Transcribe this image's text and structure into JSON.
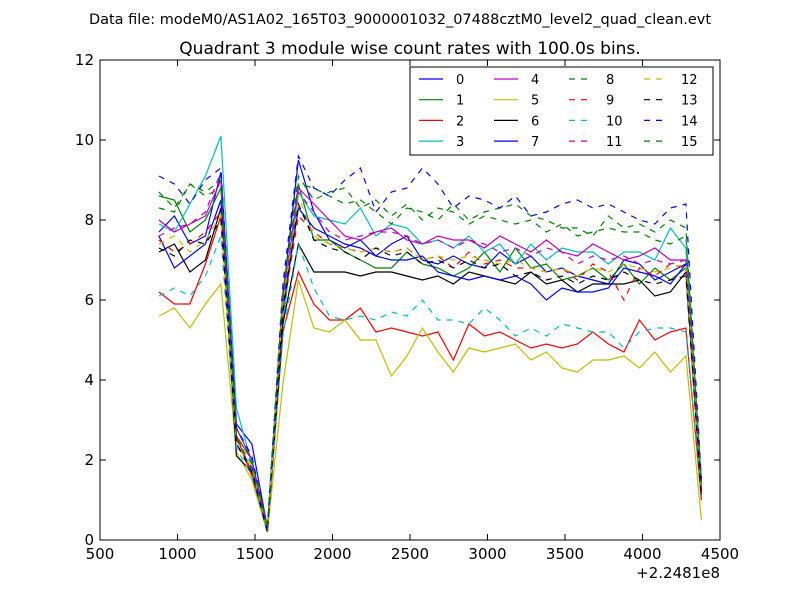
{
  "figure": {
    "suptitle": "Data file: modeM0/AS1A02_165T03_9000001032_07488cztM0_level2_quad_clean.evt"
  },
  "chart_data": {
    "type": "line",
    "title": "Quadrant 3 module wise count rates with 100.0s bins.",
    "xlabel": "",
    "ylabel": "",
    "x_offset_label": "+2.2481e8",
    "xlim": [
      500,
      4500
    ],
    "ylim": [
      0,
      12
    ],
    "xticks": [
      500,
      1000,
      1500,
      2000,
      2500,
      3000,
      3500,
      4000,
      4500
    ],
    "yticks": [
      0,
      2,
      4,
      6,
      8,
      10,
      12
    ],
    "grid": false,
    "legend_position": "top-right",
    "legend_columns": 4,
    "x": [
      880,
      980,
      1080,
      1180,
      1280,
      1380,
      1480,
      1580,
      1680,
      1780,
      1880,
      1980,
      2080,
      2180,
      2280,
      2380,
      2480,
      2580,
      2680,
      2780,
      2880,
      2980,
      3080,
      3180,
      3280,
      3380,
      3480,
      3580,
      3680,
      3780,
      3880,
      3980,
      4080,
      4180,
      4280,
      4380
    ],
    "series": [
      {
        "name": "0",
        "color": "#0000ff",
        "dashed": false,
        "values": [
          7.7,
          8.1,
          7.4,
          7.6,
          9.2,
          2.9,
          2.4,
          0.3,
          6.1,
          9.5,
          8.2,
          7.5,
          7.3,
          7.5,
          7.1,
          7.4,
          7.6,
          7.0,
          6.9,
          7.1,
          6.9,
          6.8,
          7.2,
          6.9,
          7.1,
          6.7,
          6.8,
          6.6,
          6.5,
          6.4,
          7.0,
          6.9,
          6.5,
          6.7,
          6.9,
          1.5
        ]
      },
      {
        "name": "1",
        "color": "#008000",
        "dashed": false,
        "values": [
          8.6,
          8.5,
          7.7,
          8.0,
          8.8,
          2.6,
          2.0,
          0.3,
          5.8,
          8.9,
          7.5,
          7.5,
          7.2,
          7.0,
          6.8,
          6.8,
          7.2,
          6.9,
          6.8,
          6.6,
          6.8,
          7.2,
          6.7,
          7.3,
          6.8,
          6.9,
          6.5,
          6.6,
          6.8,
          6.5,
          6.9,
          6.4,
          6.8,
          6.5,
          6.8,
          1.2
        ]
      },
      {
        "name": "2",
        "color": "#ff0000",
        "dashed": false,
        "values": [
          6.2,
          5.9,
          5.9,
          6.9,
          8.1,
          2.6,
          1.6,
          0.2,
          5.2,
          6.7,
          5.9,
          5.5,
          5.5,
          5.8,
          5.2,
          5.3,
          5.2,
          5.1,
          5.2,
          4.5,
          5.4,
          5.1,
          5.2,
          5.0,
          4.8,
          4.9,
          4.8,
          4.9,
          5.2,
          4.9,
          4.7,
          5.5,
          5.0,
          5.2,
          5.3,
          1.0
        ]
      },
      {
        "name": "3",
        "color": "#00bfbf",
        "dashed": false,
        "values": [
          7.9,
          7.7,
          8.4,
          9.1,
          10.1,
          3.3,
          1.9,
          0.3,
          5.4,
          8.7,
          8.1,
          8.0,
          7.9,
          8.3,
          7.6,
          7.9,
          7.8,
          7.4,
          7.5,
          7.3,
          7.6,
          7.2,
          7.4,
          6.9,
          7.4,
          7.0,
          7.3,
          7.2,
          7.2,
          6.9,
          7.2,
          7.2,
          7.0,
          7.8,
          7.3,
          1.4
        ]
      },
      {
        "name": "4",
        "color": "#bf00bf",
        "dashed": false,
        "values": [
          8.0,
          7.7,
          7.9,
          8.1,
          9.0,
          2.8,
          2.0,
          0.3,
          5.9,
          8.8,
          8.4,
          8.0,
          7.6,
          7.5,
          7.7,
          7.8,
          7.5,
          7.4,
          7.6,
          7.5,
          7.5,
          7.3,
          7.6,
          7.4,
          7.2,
          7.5,
          7.2,
          7.1,
          7.4,
          7.2,
          7.0,
          7.1,
          7.3,
          7.0,
          7.0,
          1.3
        ]
      },
      {
        "name": "5",
        "color": "#bfbf00",
        "dashed": false,
        "values": [
          5.6,
          5.8,
          5.3,
          5.9,
          6.4,
          2.2,
          1.5,
          0.2,
          3.9,
          6.5,
          5.3,
          5.2,
          5.5,
          5.0,
          5.0,
          4.1,
          4.6,
          5.3,
          4.7,
          4.2,
          4.8,
          4.7,
          4.8,
          4.9,
          4.5,
          4.7,
          4.3,
          4.2,
          4.5,
          4.5,
          4.6,
          4.3,
          4.7,
          4.2,
          4.6,
          0.5
        ]
      },
      {
        "name": "6",
        "color": "#000000",
        "dashed": false,
        "values": [
          7.2,
          7.4,
          6.7,
          7.0,
          8.3,
          2.1,
          1.7,
          0.2,
          5.4,
          7.4,
          6.7,
          6.7,
          6.7,
          6.6,
          6.7,
          6.7,
          6.6,
          6.5,
          6.6,
          6.4,
          6.7,
          6.6,
          6.5,
          6.4,
          6.7,
          6.4,
          6.5,
          6.2,
          6.4,
          6.4,
          6.4,
          6.5,
          6.1,
          6.2,
          6.7,
          1.1
        ]
      },
      {
        "name": "7",
        "color": "#0000ff",
        "dashed": false,
        "values": [
          7.6,
          6.8,
          7.1,
          7.4,
          8.5,
          2.4,
          1.8,
          0.2,
          5.8,
          8.3,
          7.8,
          7.6,
          7.4,
          7.3,
          7.1,
          7.0,
          7.0,
          7.1,
          6.7,
          6.6,
          6.5,
          6.6,
          6.5,
          6.6,
          6.4,
          6.0,
          6.3,
          6.2,
          6.2,
          6.3,
          6.8,
          6.7,
          6.6,
          6.4,
          6.9,
          1.2
        ]
      },
      {
        "name": "8",
        "color": "#008000",
        "dashed": true,
        "values": [
          8.3,
          8.2,
          8.9,
          8.6,
          8.8,
          2.5,
          1.9,
          0.2,
          6.2,
          8.9,
          8.8,
          8.6,
          8.4,
          8.5,
          8.2,
          7.9,
          8.3,
          8.2,
          8.0,
          8.4,
          8.0,
          8.2,
          8.3,
          8.4,
          8.1,
          8.0,
          7.8,
          7.8,
          7.6,
          8.1,
          7.8,
          7.9,
          7.7,
          8.0,
          7.8,
          1.4
        ]
      },
      {
        "name": "9",
        "color": "#ff0000",
        "dashed": true,
        "values": [
          7.5,
          7.2,
          7.4,
          7.7,
          8.2,
          2.6,
          1.7,
          0.3,
          5.7,
          8.1,
          7.7,
          7.4,
          7.3,
          7.2,
          7.3,
          7.2,
          7.3,
          7.0,
          7.1,
          6.8,
          7.2,
          6.9,
          7.0,
          6.8,
          6.8,
          6.7,
          6.8,
          6.5,
          6.9,
          6.7,
          6.0,
          6.8,
          6.6,
          6.9,
          6.8,
          1.2
        ]
      },
      {
        "name": "10",
        "color": "#00bfbf",
        "dashed": true,
        "values": [
          6.1,
          6.3,
          6.1,
          6.6,
          7.6,
          2.3,
          1.6,
          0.2,
          5.1,
          7.4,
          6.3,
          5.6,
          5.5,
          5.6,
          5.5,
          5.7,
          5.6,
          6.0,
          5.5,
          5.5,
          5.4,
          5.8,
          5.5,
          5.1,
          5.3,
          5.1,
          5.4,
          5.3,
          5.2,
          5.2,
          4.8,
          5.2,
          5.3,
          5.3,
          5.2,
          1.1
        ]
      },
      {
        "name": "11",
        "color": "#bf00bf",
        "dashed": true,
        "values": [
          7.6,
          7.8,
          7.9,
          8.2,
          9.2,
          2.8,
          2.0,
          0.3,
          6.0,
          8.7,
          8.2,
          7.7,
          7.5,
          7.6,
          7.7,
          7.7,
          7.6,
          7.4,
          7.5,
          7.3,
          7.5,
          7.4,
          7.2,
          7.3,
          7.1,
          7.3,
          7.2,
          6.9,
          7.1,
          7.0,
          7.1,
          6.9,
          7.0,
          6.9,
          7.0,
          1.3
        ]
      },
      {
        "name": "12",
        "color": "#bfbf00",
        "dashed": true,
        "values": [
          7.4,
          7.6,
          7.2,
          7.5,
          8.1,
          2.4,
          1.8,
          0.2,
          5.9,
          8.6,
          7.6,
          7.4,
          7.3,
          7.2,
          7.3,
          7.2,
          7.3,
          7.0,
          7.1,
          7.0,
          7.1,
          7.0,
          6.9,
          7.0,
          6.8,
          6.7,
          6.8,
          6.6,
          6.8,
          6.7,
          6.9,
          6.8,
          6.7,
          6.8,
          6.9,
          1.2
        ]
      },
      {
        "name": "13",
        "color": "#000000",
        "dashed": true,
        "values": [
          7.3,
          7.1,
          7.5,
          7.4,
          8.0,
          2.4,
          1.7,
          0.2,
          5.7,
          8.4,
          7.5,
          7.3,
          7.2,
          7.0,
          7.3,
          7.1,
          7.2,
          6.9,
          7.0,
          6.8,
          7.0,
          6.8,
          6.9,
          6.6,
          6.7,
          6.5,
          6.6,
          6.4,
          6.6,
          6.5,
          6.7,
          6.5,
          6.4,
          6.5,
          6.6,
          1.1
        ]
      },
      {
        "name": "14",
        "color": "#0000ff",
        "dashed": true,
        "values": [
          9.1,
          8.9,
          8.4,
          9.0,
          9.3,
          2.8,
          2.1,
          0.3,
          6.4,
          9.6,
          8.8,
          8.6,
          9.0,
          9.3,
          8.2,
          8.7,
          8.8,
          9.3,
          8.9,
          8.3,
          8.6,
          8.5,
          8.3,
          8.6,
          8.1,
          8.2,
          8.4,
          8.5,
          8.3,
          8.4,
          8.2,
          8.0,
          7.9,
          8.3,
          8.4,
          1.5
        ]
      },
      {
        "name": "15",
        "color": "#008000",
        "dashed": true,
        "values": [
          8.7,
          8.3,
          8.9,
          8.7,
          9.0,
          2.6,
          2.0,
          0.3,
          6.2,
          9.1,
          8.5,
          8.7,
          8.8,
          8.3,
          8.5,
          8.1,
          8.4,
          8.0,
          8.3,
          8.2,
          7.9,
          8.1,
          8.0,
          7.9,
          8.0,
          7.7,
          7.9,
          7.6,
          7.7,
          7.8,
          7.7,
          7.7,
          7.5,
          7.4,
          7.6,
          1.4
        ]
      }
    ]
  }
}
